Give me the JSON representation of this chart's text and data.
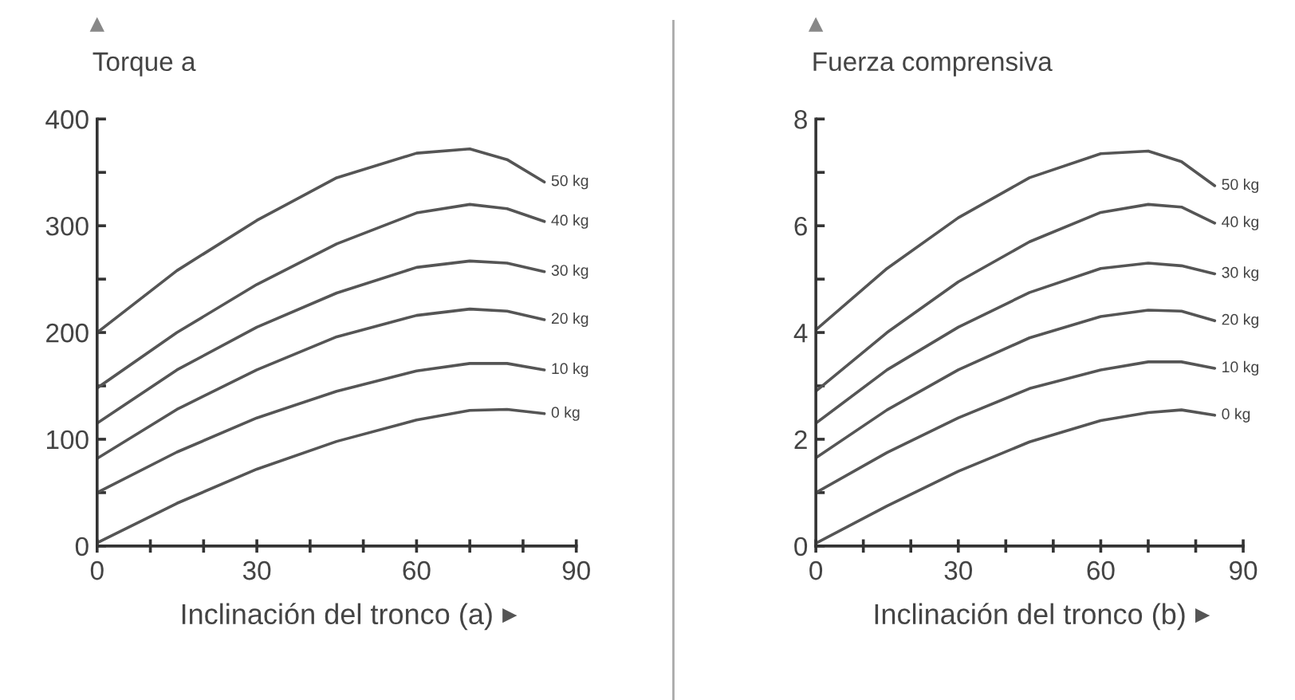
{
  "chart_data": [
    {
      "type": "line",
      "ylabel": "Torque a",
      "xlabel": "Inclinación del tronco (a)",
      "grid": false,
      "legend": false,
      "marker": "none",
      "line_style": "solid",
      "x": [
        0,
        15,
        30,
        45,
        60,
        70,
        77,
        84
      ],
      "xlim": [
        0,
        90
      ],
      "xticks": [
        0,
        {
          "value": 10,
          "label": null
        },
        {
          "value": 20,
          "label": null
        },
        30,
        {
          "value": 40,
          "label": null
        },
        {
          "value": 50,
          "label": null
        },
        60,
        {
          "value": 70,
          "label": null
        },
        {
          "value": 80,
          "label": null
        },
        90
      ],
      "ylim": [
        0,
        400
      ],
      "yticks": [
        0,
        {
          "value": 50,
          "label": null
        },
        100,
        {
          "value": 150,
          "label": null
        },
        200,
        {
          "value": 250,
          "label": null
        },
        300,
        {
          "value": 350,
          "label": null
        },
        400
      ],
      "series": [
        {
          "name": "50 kg",
          "color": "#555555",
          "values": [
            200,
            258,
            305,
            345,
            368,
            372,
            362,
            341
          ]
        },
        {
          "name": "40 kg",
          "color": "#555555",
          "values": [
            148,
            200,
            245,
            283,
            312,
            320,
            316,
            304
          ]
        },
        {
          "name": "30 kg",
          "color": "#555555",
          "values": [
            115,
            165,
            205,
            237,
            261,
            267,
            265,
            257
          ]
        },
        {
          "name": "20 kg",
          "color": "#555555",
          "values": [
            82,
            128,
            165,
            196,
            216,
            222,
            220,
            212
          ]
        },
        {
          "name": "10 kg",
          "color": "#555555",
          "values": [
            50,
            88,
            120,
            145,
            164,
            171,
            171,
            165
          ]
        },
        {
          "name": "0 kg",
          "color": "#555555",
          "values": [
            3,
            40,
            72,
            98,
            118,
            127,
            128,
            124
          ]
        }
      ]
    },
    {
      "type": "line",
      "ylabel": "Fuerza comprensiva",
      "xlabel": "Inclinación del tronco (b)",
      "grid": false,
      "legend": false,
      "marker": "none",
      "line_style": "solid",
      "x": [
        0,
        15,
        30,
        45,
        60,
        70,
        77,
        84
      ],
      "xlim": [
        0,
        90
      ],
      "xticks": [
        0,
        {
          "value": 10,
          "label": null
        },
        {
          "value": 20,
          "label": null
        },
        30,
        {
          "value": 40,
          "label": null
        },
        {
          "value": 50,
          "label": null
        },
        60,
        {
          "value": 70,
          "label": null
        },
        {
          "value": 80,
          "label": null
        },
        90
      ],
      "ylim": [
        0,
        8
      ],
      "yticks": [
        0,
        {
          "value": 1,
          "label": null
        },
        2,
        {
          "value": 3,
          "label": null
        },
        4,
        {
          "value": 5,
          "label": null
        },
        6,
        {
          "value": 7,
          "label": null
        },
        8
      ],
      "series": [
        {
          "name": "50 kg",
          "color": "#555555",
          "values": [
            4.05,
            5.2,
            6.15,
            6.9,
            7.35,
            7.4,
            7.2,
            6.75
          ]
        },
        {
          "name": "40 kg",
          "color": "#555555",
          "values": [
            2.9,
            4.0,
            4.95,
            5.7,
            6.25,
            6.4,
            6.35,
            6.05
          ]
        },
        {
          "name": "30 kg",
          "color": "#555555",
          "values": [
            2.3,
            3.3,
            4.1,
            4.75,
            5.2,
            5.3,
            5.25,
            5.1
          ]
        },
        {
          "name": "20 kg",
          "color": "#555555",
          "values": [
            1.65,
            2.55,
            3.3,
            3.9,
            4.3,
            4.42,
            4.4,
            4.22
          ]
        },
        {
          "name": "10 kg",
          "color": "#555555",
          "values": [
            1.0,
            1.75,
            2.4,
            2.95,
            3.3,
            3.45,
            3.45,
            3.33
          ]
        },
        {
          "name": "0 kg",
          "color": "#555555",
          "values": [
            0.05,
            0.75,
            1.4,
            1.95,
            2.35,
            2.5,
            2.55,
            2.45
          ]
        }
      ]
    }
  ]
}
